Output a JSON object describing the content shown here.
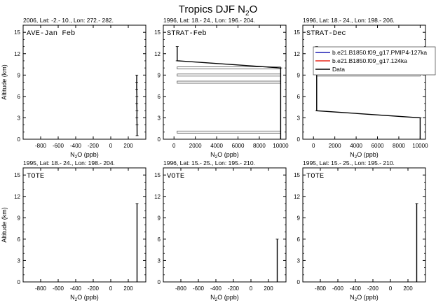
{
  "figure": {
    "title": "Tropics DJF N",
    "title_sub": "2",
    "title_tail": "O",
    "ylabel": "Altitude (km)",
    "xlabel_prefix": "N",
    "xlabel_sub": "2",
    "xlabel_suffix": "O (ppb)"
  },
  "legend": {
    "entries": [
      {
        "label": "b.e21.B1850.f09_g17.PMIP4-127ka",
        "color": "#1f1fb4"
      },
      {
        "label": "b.e21.B1850.f09_g17.124ka",
        "color": "#e8291c"
      },
      {
        "label": "Data",
        "color": "#000000"
      }
    ]
  },
  "chart_data": [
    {
      "type": "line",
      "subtitle": "2006, Lat: -2.- 10., Lon: 272.- 282.",
      "campaign": "AVE-Jan Feb",
      "xlim": [
        -1000,
        400
      ],
      "xticks": [
        -800,
        -600,
        -400,
        -200,
        0,
        200
      ],
      "ylim": [
        0,
        16
      ],
      "yticks": [
        0,
        3,
        6,
        9,
        12,
        15
      ],
      "series": [
        {
          "name": "Data",
          "color": "#000000",
          "x": [
            297,
            296,
            296,
            298,
            297,
            299,
            298,
            300,
            301
          ],
          "y": [
            9,
            8,
            7,
            6,
            5,
            4,
            3,
            2,
            0.5
          ]
        }
      ],
      "bars": []
    },
    {
      "type": "line",
      "subtitle": "1996, Lat: 18.- 24., Lon: 196.- 204.",
      "campaign": "STRAT-Feb",
      "xlim": [
        -1000,
        10500
      ],
      "xticks": [
        0,
        2000,
        4000,
        6000,
        8000,
        10000
      ],
      "ylim": [
        0,
        16
      ],
      "yticks": [
        0,
        3,
        6,
        9,
        12,
        15
      ],
      "series": [
        {
          "name": "Data",
          "color": "#000000",
          "x": [
            300,
            300,
            10000,
            10000
          ],
          "y": [
            13,
            11,
            10,
            0
          ]
        }
      ],
      "bars": [
        {
          "y": 10,
          "x0": 300,
          "x1": 10000
        },
        {
          "y": 9,
          "x0": 300,
          "x1": 10000
        },
        {
          "y": 8,
          "x0": 300,
          "x1": 10000
        },
        {
          "y": 1,
          "x0": 300,
          "x1": 10000
        }
      ]
    },
    {
      "type": "line",
      "subtitle": "1996, Lat: 18.- 24., Lon: 198.- 206.",
      "campaign": "STRAT-Dec",
      "xlim": [
        -1000,
        10500
      ],
      "xticks": [
        0,
        2000,
        4000,
        6000,
        8000,
        10000
      ],
      "ylim": [
        0,
        16
      ],
      "yticks": [
        0,
        3,
        6,
        9,
        12,
        15
      ],
      "series": [
        {
          "name": "Data",
          "color": "#000000",
          "x": [
            300,
            300,
            10000,
            10000
          ],
          "y": [
            13,
            4,
            3,
            0
          ]
        }
      ],
      "bars": [
        {
          "y": 9,
          "x0": 300,
          "x1": 10000
        }
      ]
    },
    {
      "type": "line",
      "subtitle": "1995, Lat: 18.- 24., Lon: 198.- 204.",
      "campaign": "TOTE",
      "xlim": [
        -1000,
        400
      ],
      "xticks": [
        -800,
        -600,
        -400,
        -200,
        0,
        200
      ],
      "ylim": [
        0,
        16
      ],
      "yticks": [
        0,
        3,
        6,
        9,
        12,
        15
      ],
      "series": [
        {
          "name": "Data",
          "color": "#000000",
          "x": [
            300,
            300
          ],
          "y": [
            11,
            0
          ]
        }
      ],
      "bars": []
    },
    {
      "type": "line",
      "subtitle": "1996, Lat: 15.- 25., Lon: 195.- 210.",
      "campaign": "VOTE",
      "xlim": [
        -1000,
        400
      ],
      "xticks": [
        -800,
        -600,
        -400,
        -200,
        0,
        200
      ],
      "ylim": [
        0,
        16
      ],
      "yticks": [
        0,
        3,
        6,
        9,
        12,
        15
      ],
      "series": [
        {
          "name": "Data",
          "color": "#000000",
          "x": [
            300,
            300
          ],
          "y": [
            6,
            0
          ]
        }
      ],
      "bars": []
    },
    {
      "type": "line",
      "subtitle": "1995, Lat: 15.- 25., Lon: 195.- 210.",
      "campaign": "TOTE",
      "xlim": [
        -1000,
        400
      ],
      "xticks": [
        -800,
        -600,
        -400,
        -200,
        0,
        200
      ],
      "ylim": [
        0,
        16
      ],
      "yticks": [
        0,
        3,
        6,
        9,
        12,
        15
      ],
      "series": [
        {
          "name": "Data",
          "color": "#000000",
          "x": [
            300,
            300
          ],
          "y": [
            11,
            0
          ]
        }
      ],
      "bars": []
    }
  ]
}
